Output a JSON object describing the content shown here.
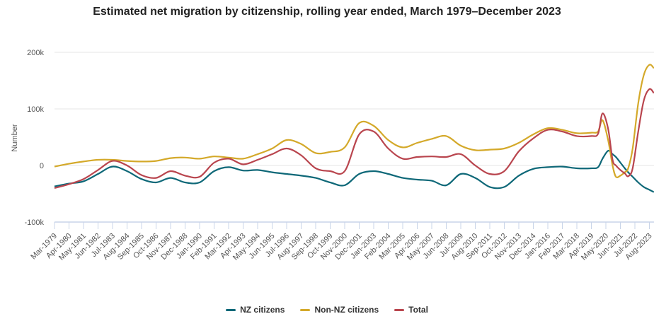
{
  "chart_data": {
    "type": "line",
    "title": "Estimated net migration by citizenship, rolling year ended, March 1979–December 2023",
    "ylabel": "Number",
    "xlabel": "",
    "ylim": [
      -100000,
      200000
    ],
    "yticks": [
      {
        "v": 200000,
        "label": "200k"
      },
      {
        "v": 100000,
        "label": "100k"
      },
      {
        "v": 0,
        "label": "0"
      },
      {
        "v": -100000,
        "label": "-100k"
      }
    ],
    "xtick_labels": [
      "Mar-1979",
      "Apr-1980",
      "May-1981",
      "Jun-1982",
      "Jul-1983",
      "Aug-1984",
      "Sep-1985",
      "Oct-1986",
      "Nov-1987",
      "Dec-1988",
      "Jan-1990",
      "Feb-1991",
      "Mar-1992",
      "Apr-1993",
      "May-1994",
      "Jun-1995",
      "Jul-1996",
      "Aug-1997",
      "Sep-1998",
      "Oct-1999",
      "Nov-2000",
      "Dec-2001",
      "Jan-2003",
      "Feb-2004",
      "Mar-2005",
      "Apr-2006",
      "May-2007",
      "Jun-2008",
      "Jul-2009",
      "Aug-2010",
      "Sep-2011",
      "Oct-2012",
      "Nov-2013",
      "Dec-2014",
      "Jan-2016",
      "Feb-2017",
      "Mar-2018",
      "Apr-2019",
      "May-2020",
      "Jun-2021",
      "Jul-2022",
      "Aug-2023"
    ],
    "grid": true,
    "legend": "bottom",
    "x": [
      "1979-03",
      "1980-04",
      "1981-05",
      "1982-06",
      "1983-07",
      "1984-08",
      "1985-09",
      "1986-10",
      "1987-11",
      "1988-12",
      "1990-01",
      "1991-02",
      "1992-03",
      "1993-04",
      "1994-05",
      "1995-06",
      "1996-07",
      "1997-08",
      "1998-09",
      "1999-10",
      "2000-11",
      "2001-12",
      "2003-01",
      "2004-02",
      "2005-03",
      "2006-04",
      "2007-05",
      "2008-06",
      "2009-07",
      "2010-08",
      "2011-09",
      "2012-10",
      "2013-11",
      "2014-12",
      "2016-01",
      "2017-02",
      "2018-03",
      "2019-04",
      "2019-10",
      "2020-02",
      "2020-07",
      "2020-11",
      "2021-02",
      "2021-06",
      "2021-10",
      "2022-01",
      "2022-05",
      "2022-10",
      "2023-03",
      "2023-08",
      "2023-12"
    ],
    "series": [
      {
        "name": "NZ citizens",
        "color": "#0e6878",
        "values": [
          -37000,
          -32000,
          -28000,
          -15000,
          -2000,
          -10000,
          -24000,
          -30000,
          -22000,
          -30000,
          -30000,
          -10000,
          -3000,
          -9000,
          -8000,
          -12000,
          -15000,
          -18000,
          -22000,
          -30000,
          -35000,
          -15000,
          -10000,
          -15000,
          -22000,
          -25000,
          -27000,
          -35000,
          -15000,
          -22000,
          -38000,
          -38000,
          -18000,
          -6000,
          -3000,
          -2000,
          -5000,
          -5000,
          -3000,
          12000,
          26000,
          20000,
          15000,
          5000,
          -5000,
          -12000,
          -20000,
          -30000,
          -38000,
          -43000,
          -47000
        ]
      },
      {
        "name": "Non-NZ citizens",
        "color": "#d4a92a",
        "values": [
          -2000,
          3000,
          7000,
          10000,
          10000,
          8000,
          7000,
          8000,
          13000,
          14000,
          12000,
          16000,
          14000,
          12000,
          20000,
          30000,
          45000,
          38000,
          22000,
          24000,
          32000,
          75000,
          70000,
          45000,
          32000,
          40000,
          47000,
          52000,
          35000,
          27000,
          28000,
          30000,
          40000,
          55000,
          66000,
          63000,
          57000,
          58000,
          60000,
          80000,
          45000,
          0,
          -20000,
          -18000,
          -12000,
          -5000,
          30000,
          110000,
          160000,
          178000,
          172000
        ]
      },
      {
        "name": "Total",
        "color": "#b9454e",
        "values": [
          -40000,
          -33000,
          -24000,
          -8000,
          8000,
          0,
          -17000,
          -22000,
          -10000,
          -18000,
          -20000,
          5000,
          12000,
          2000,
          10000,
          20000,
          30000,
          18000,
          -5000,
          -10000,
          -10000,
          55000,
          60000,
          30000,
          12000,
          15000,
          16000,
          15000,
          20000,
          0,
          -15000,
          -10000,
          25000,
          48000,
          63000,
          60000,
          52000,
          52000,
          56000,
          92000,
          65000,
          10000,
          0,
          -8000,
          -14000,
          -19000,
          -5000,
          60000,
          115000,
          135000,
          128000
        ]
      }
    ]
  }
}
